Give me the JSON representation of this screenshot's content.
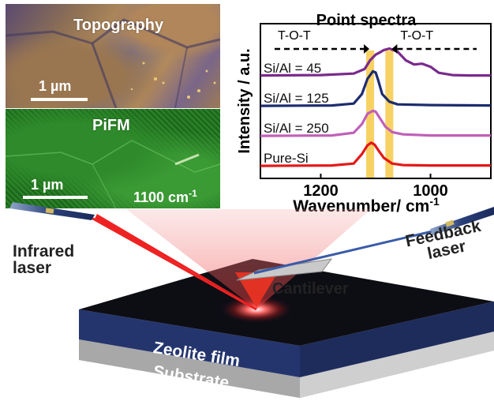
{
  "topography": {
    "title": "Topography",
    "scale": "1 µm"
  },
  "pifm": {
    "title": "PiFM",
    "scale": "1 µm",
    "wavenumber": "1100 cm",
    "wavenumber_sup": "-1"
  },
  "labels": {
    "infrared": "Infrared\nlaser",
    "feedback": "Feedback\nlaser",
    "cantilever": "Cantilever",
    "zeolite": "Zeolite film",
    "substrate": "Substrate"
  },
  "colors": {
    "purple": "#7a2a8c",
    "navy": "#1c2c6e",
    "pink": "#c060b8",
    "red": "#e41818",
    "highlight": "#f7c948"
  },
  "chart_data": {
    "type": "line",
    "title": "Point spectra",
    "xlabel": "Wavenumber/ cm",
    "xlabel_sup": "-1",
    "ylabel": "Intensity / a.u.",
    "xlim": [
      1310,
      890
    ],
    "xticks": [
      "1200",
      "1000"
    ],
    "annotations": [
      "T-O-T",
      "T-O-T"
    ],
    "highlight_bands": [
      1110,
      1075
    ],
    "series": [
      {
        "name": "Si/Al = 45",
        "color": "#7a2a8c",
        "offset": 3,
        "x": [
          1310,
          1200,
          1140,
          1120,
          1110,
          1100,
          1092,
          1085,
          1075,
          1060,
          1045,
          1030,
          1015,
          1000,
          985,
          960,
          930,
          890
        ],
        "y": [
          0.05,
          0.06,
          0.1,
          0.22,
          0.45,
          0.6,
          0.66,
          0.72,
          0.76,
          0.68,
          0.45,
          0.34,
          0.36,
          0.28,
          0.12,
          0.06,
          0.05,
          0.05
        ]
      },
      {
        "name": "Si/Al = 125",
        "color": "#1c2c6e",
        "offset": 2,
        "x": [
          1310,
          1180,
          1140,
          1125,
          1115,
          1105,
          1100,
          1095,
          1088,
          1075,
          1060,
          1000,
          890
        ],
        "y": [
          0.04,
          0.05,
          0.1,
          0.35,
          0.75,
          0.95,
          0.92,
          0.7,
          0.35,
          0.15,
          0.08,
          0.06,
          0.05
        ]
      },
      {
        "name": "Si/Al = 250",
        "color": "#c060b8",
        "offset": 1,
        "x": [
          1310,
          1180,
          1140,
          1125,
          1115,
          1105,
          1100,
          1092,
          1082,
          1070,
          1050,
          1000,
          890
        ],
        "y": [
          0.04,
          0.05,
          0.12,
          0.35,
          0.62,
          0.7,
          0.68,
          0.5,
          0.28,
          0.14,
          0.08,
          0.05,
          0.05
        ]
      },
      {
        "name": "Pure-Si",
        "color": "#e41818",
        "offset": 0,
        "x": [
          1310,
          1180,
          1140,
          1125,
          1115,
          1108,
          1102,
          1095,
          1085,
          1070,
          1050,
          1000,
          890
        ],
        "y": [
          0.04,
          0.05,
          0.1,
          0.35,
          0.58,
          0.65,
          0.6,
          0.45,
          0.25,
          0.1,
          0.06,
          0.05,
          0.05
        ]
      }
    ]
  }
}
